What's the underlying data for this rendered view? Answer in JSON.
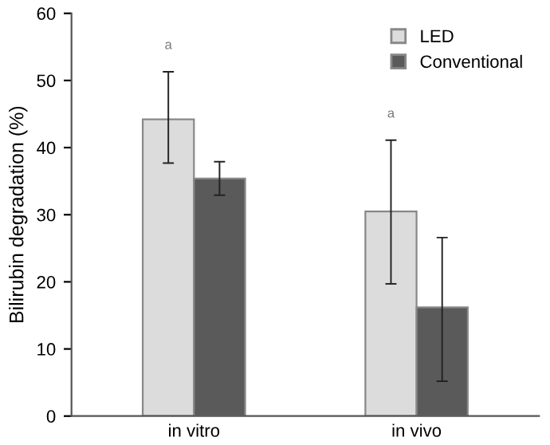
{
  "chart_data": {
    "type": "bar",
    "ylabel": "Bilirubin degradation (%)",
    "categories": [
      "in vitro",
      "in vivo"
    ],
    "series": [
      {
        "name": "LED",
        "color": "#dcdcdc",
        "values": [
          44.2,
          30.5
        ],
        "errors": [
          [
            37.7,
            51.3
          ],
          [
            19.7,
            41.1
          ]
        ]
      },
      {
        "name": "Conventional",
        "color": "#5a5a5a",
        "values": [
          35.4,
          16.2
        ],
        "errors": [
          [
            32.9,
            37.9
          ],
          [
            5.2,
            26.6
          ]
        ]
      }
    ],
    "ylim": [
      0,
      60
    ],
    "yticks": [
      0,
      10,
      20,
      30,
      40,
      50,
      60
    ],
    "grid": false,
    "legend": "top right",
    "annotations": [
      "a",
      "a"
    ]
  }
}
